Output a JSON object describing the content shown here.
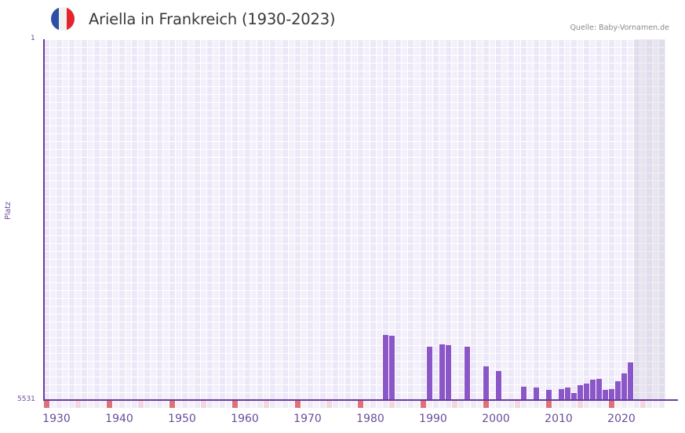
{
  "header": {
    "title": "Ariella in Frankreich (1930-2023)",
    "source": "Quelle: Baby-Vornamen.de",
    "flag_colors": [
      "#2d4fa5",
      "#f2f2f2",
      "#e3262e"
    ]
  },
  "axes": {
    "y_top_label": "1",
    "y_bottom_label": "5531",
    "y_title": "Platz",
    "x_labels": [
      "1930",
      "1940",
      "1950",
      "1960",
      "1970",
      "1980",
      "1990",
      "2000",
      "2010",
      "2020"
    ]
  },
  "colors": {
    "bar": "#8b57c8",
    "axis": "#6a3d9e",
    "decade_tick": "#e07078",
    "half_decade_tick": "#f3d6de",
    "grid_a": "#ede8f8",
    "grid_b": "#f3f0fb",
    "future_a": "#e2dded",
    "future_b": "#e8e4f0"
  },
  "chart_data": {
    "type": "bar",
    "title": "Ariella in Frankreich (1930-2023)",
    "xlabel": "",
    "ylabel": "Platz",
    "ylim": [
      5531,
      1
    ],
    "y_inverted": true,
    "x_range": [
      1930,
      2028
    ],
    "future_shaded_from": 2024,
    "categories": [
      1984,
      1985,
      1991,
      1993,
      1994,
      1997,
      2000,
      2002,
      2006,
      2008,
      2010,
      2012,
      2013,
      2014,
      2015,
      2016,
      2017,
      2018,
      2019,
      2020,
      2021,
      2022,
      2023
    ],
    "values": [
      4533,
      4545,
      4713,
      4677,
      4689,
      4713,
      5014,
      5086,
      5326,
      5338,
      5374,
      5362,
      5338,
      5423,
      5302,
      5278,
      5218,
      5206,
      5374,
      5362,
      5242,
      5122,
      4954
    ],
    "source": "Quelle: Baby-Vornamen.de"
  }
}
